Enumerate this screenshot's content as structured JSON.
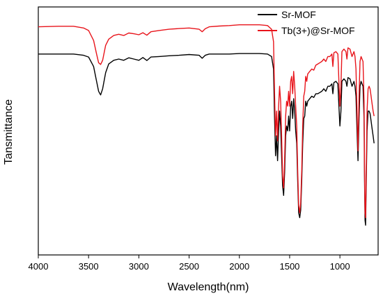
{
  "chart_data": {
    "type": "line",
    "xlabel": "Wavelength(nm)",
    "ylabel": "Tansmittance",
    "xlim": [
      4000,
      620
    ],
    "x_reversed": true,
    "x_ticks": [
      4000,
      3500,
      3000,
      2500,
      2000,
      1500,
      1000
    ],
    "y_ticks_shown": false,
    "ylim": [
      0,
      100
    ],
    "legend": "top-right",
    "grid": false,
    "series": [
      {
        "name": "Sr-MOF",
        "color": "#000000",
        "points": [
          [
            4000,
            81.0
          ],
          [
            3800,
            81.0
          ],
          [
            3650,
            81.0
          ],
          [
            3550,
            80.5
          ],
          [
            3500,
            79.8
          ],
          [
            3450,
            76.0
          ],
          [
            3420,
            70.0
          ],
          [
            3400,
            66.0
          ],
          [
            3380,
            64.5
          ],
          [
            3360,
            67.0
          ],
          [
            3330,
            73.5
          ],
          [
            3300,
            77.0
          ],
          [
            3250,
            78.5
          ],
          [
            3200,
            79.0
          ],
          [
            3150,
            78.5
          ],
          [
            3100,
            79.5
          ],
          [
            3050,
            79.0
          ],
          [
            3000,
            78.5
          ],
          [
            2960,
            79.6
          ],
          [
            2920,
            78.4
          ],
          [
            2880,
            79.8
          ],
          [
            2800,
            80.0
          ],
          [
            2700,
            80.3
          ],
          [
            2600,
            80.5
          ],
          [
            2500,
            80.8
          ],
          [
            2400,
            80.5
          ],
          [
            2370,
            79.3
          ],
          [
            2340,
            80.5
          ],
          [
            2300,
            81.0
          ],
          [
            2200,
            81.0
          ],
          [
            2100,
            81.0
          ],
          [
            2000,
            81.2
          ],
          [
            1900,
            81.2
          ],
          [
            1800,
            81.2
          ],
          [
            1720,
            81.0
          ],
          [
            1680,
            80.0
          ],
          [
            1660,
            75.0
          ],
          [
            1650,
            55.0
          ],
          [
            1640,
            40.0
          ],
          [
            1630,
            48.0
          ],
          [
            1620,
            38.0
          ],
          [
            1610,
            50.0
          ],
          [
            1600,
            58.0
          ],
          [
            1590,
            52.0
          ],
          [
            1580,
            40.0
          ],
          [
            1570,
            28.0
          ],
          [
            1560,
            24.0
          ],
          [
            1550,
            33.0
          ],
          [
            1540,
            48.0
          ],
          [
            1530,
            52.0
          ],
          [
            1520,
            50.0
          ],
          [
            1510,
            56.0
          ],
          [
            1500,
            50.0
          ],
          [
            1490,
            60.0
          ],
          [
            1480,
            62.0
          ],
          [
            1470,
            55.0
          ],
          [
            1460,
            63.0
          ],
          [
            1450,
            58.0
          ],
          [
            1440,
            50.0
          ],
          [
            1430,
            45.0
          ],
          [
            1420,
            30.0
          ],
          [
            1410,
            17.0
          ],
          [
            1400,
            15.0
          ],
          [
            1390,
            18.0
          ],
          [
            1380,
            30.0
          ],
          [
            1370,
            45.0
          ],
          [
            1360,
            55.0
          ],
          [
            1350,
            56.0
          ],
          [
            1340,
            62.0
          ],
          [
            1330,
            60.0
          ],
          [
            1320,
            62.0
          ],
          [
            1300,
            63.0
          ],
          [
            1280,
            64.0
          ],
          [
            1260,
            63.5
          ],
          [
            1240,
            65.0
          ],
          [
            1220,
            65.0
          ],
          [
            1200,
            65.5
          ],
          [
            1180,
            66.0
          ],
          [
            1160,
            67.0
          ],
          [
            1140,
            66.0
          ],
          [
            1120,
            68.0
          ],
          [
            1100,
            68.0
          ],
          [
            1080,
            69.0
          ],
          [
            1070,
            65.0
          ],
          [
            1060,
            69.5
          ],
          [
            1040,
            70.0
          ],
          [
            1020,
            69.0
          ],
          [
            1010,
            60.0
          ],
          [
            1000,
            52.0
          ],
          [
            990,
            58.0
          ],
          [
            980,
            70.0
          ],
          [
            960,
            71.0
          ],
          [
            940,
            70.0
          ],
          [
            930,
            68.0
          ],
          [
            920,
            71.5
          ],
          [
            900,
            71.0
          ],
          [
            880,
            68.0
          ],
          [
            860,
            70.0
          ],
          [
            850,
            68.0
          ],
          [
            840,
            64.0
          ],
          [
            830,
            50.0
          ],
          [
            820,
            38.0
          ],
          [
            810,
            55.0
          ],
          [
            800,
            68.0
          ],
          [
            790,
            70.0
          ],
          [
            780,
            69.0
          ],
          [
            770,
            68.0
          ],
          [
            760,
            55.0
          ],
          [
            755,
            30.0
          ],
          [
            750,
            14.0
          ],
          [
            745,
            12.0
          ],
          [
            740,
            25.0
          ],
          [
            730,
            50.0
          ],
          [
            720,
            58.0
          ],
          [
            710,
            58.0
          ],
          [
            700,
            57.0
          ],
          [
            690,
            54.0
          ],
          [
            680,
            51.0
          ],
          [
            670,
            48.0
          ],
          [
            660,
            45.0
          ]
        ]
      },
      {
        "name": "Tb(3+)@Sr-MOF",
        "color": "#e8141b",
        "points": [
          [
            4000,
            92.0
          ],
          [
            3800,
            92.2
          ],
          [
            3650,
            92.2
          ],
          [
            3550,
            91.5
          ],
          [
            3500,
            90.5
          ],
          [
            3450,
            86.5
          ],
          [
            3420,
            81.0
          ],
          [
            3400,
            77.5
          ],
          [
            3380,
            76.8
          ],
          [
            3360,
            78.5
          ],
          [
            3330,
            84.5
          ],
          [
            3300,
            87.0
          ],
          [
            3250,
            88.5
          ],
          [
            3200,
            89.0
          ],
          [
            3150,
            88.5
          ],
          [
            3100,
            89.5
          ],
          [
            3050,
            89.2
          ],
          [
            3000,
            88.8
          ],
          [
            2960,
            89.6
          ],
          [
            2920,
            88.6
          ],
          [
            2880,
            90.0
          ],
          [
            2800,
            90.5
          ],
          [
            2700,
            91.0
          ],
          [
            2600,
            91.3
          ],
          [
            2500,
            91.5
          ],
          [
            2400,
            91.0
          ],
          [
            2370,
            90.0
          ],
          [
            2340,
            91.2
          ],
          [
            2300,
            92.0
          ],
          [
            2200,
            92.3
          ],
          [
            2100,
            92.5
          ],
          [
            2000,
            92.8
          ],
          [
            1900,
            92.8
          ],
          [
            1800,
            92.8
          ],
          [
            1720,
            92.5
          ],
          [
            1680,
            91.0
          ],
          [
            1660,
            86.0
          ],
          [
            1650,
            65.0
          ],
          [
            1640,
            48.0
          ],
          [
            1630,
            58.0
          ],
          [
            1620,
            46.0
          ],
          [
            1610,
            60.0
          ],
          [
            1600,
            68.0
          ],
          [
            1590,
            62.0
          ],
          [
            1580,
            48.0
          ],
          [
            1570,
            32.0
          ],
          [
            1560,
            27.0
          ],
          [
            1550,
            38.0
          ],
          [
            1540,
            56.0
          ],
          [
            1530,
            62.0
          ],
          [
            1520,
            60.0
          ],
          [
            1510,
            66.0
          ],
          [
            1500,
            60.0
          ],
          [
            1490,
            70.0
          ],
          [
            1480,
            72.0
          ],
          [
            1470,
            65.0
          ],
          [
            1460,
            74.0
          ],
          [
            1450,
            68.0
          ],
          [
            1440,
            60.0
          ],
          [
            1430,
            52.0
          ],
          [
            1420,
            34.0
          ],
          [
            1410,
            20.0
          ],
          [
            1400,
            17.0
          ],
          [
            1390,
            21.0
          ],
          [
            1380,
            34.0
          ],
          [
            1370,
            52.0
          ],
          [
            1360,
            64.0
          ],
          [
            1350,
            66.0
          ],
          [
            1340,
            72.0
          ],
          [
            1330,
            70.0
          ],
          [
            1320,
            73.0
          ],
          [
            1300,
            74.0
          ],
          [
            1280,
            75.0
          ],
          [
            1260,
            74.5
          ],
          [
            1240,
            76.5
          ],
          [
            1220,
            77.0
          ],
          [
            1200,
            77.5
          ],
          [
            1180,
            78.0
          ],
          [
            1160,
            79.0
          ],
          [
            1140,
            78.0
          ],
          [
            1120,
            80.0
          ],
          [
            1100,
            80.0
          ],
          [
            1080,
            81.0
          ],
          [
            1070,
            76.0
          ],
          [
            1060,
            81.5
          ],
          [
            1040,
            82.0
          ],
          [
            1020,
            81.0
          ],
          [
            1010,
            70.0
          ],
          [
            1000,
            60.0
          ],
          [
            990,
            68.0
          ],
          [
            980,
            82.0
          ],
          [
            960,
            83.0
          ],
          [
            940,
            82.0
          ],
          [
            930,
            79.0
          ],
          [
            920,
            83.5
          ],
          [
            900,
            83.0
          ],
          [
            880,
            80.0
          ],
          [
            860,
            82.0
          ],
          [
            850,
            80.0
          ],
          [
            840,
            75.0
          ],
          [
            830,
            58.0
          ],
          [
            820,
            42.0
          ],
          [
            810,
            64.0
          ],
          [
            800,
            78.0
          ],
          [
            790,
            80.0
          ],
          [
            780,
            79.0
          ],
          [
            770,
            78.0
          ],
          [
            760,
            62.0
          ],
          [
            755,
            34.0
          ],
          [
            750,
            17.0
          ],
          [
            745,
            15.0
          ],
          [
            740,
            29.0
          ],
          [
            730,
            58.0
          ],
          [
            720,
            67.0
          ],
          [
            710,
            68.0
          ],
          [
            700,
            67.0
          ],
          [
            690,
            64.0
          ],
          [
            680,
            61.0
          ],
          [
            670,
            58.0
          ],
          [
            660,
            56.0
          ]
        ]
      }
    ]
  }
}
